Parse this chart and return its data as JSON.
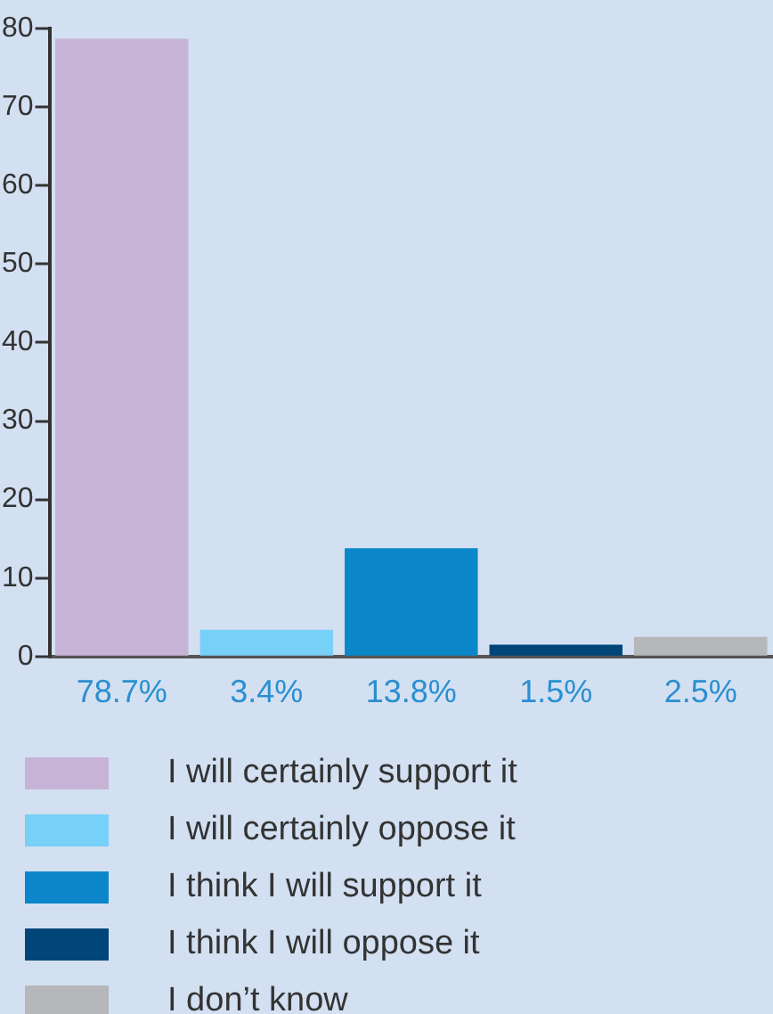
{
  "chart_data": {
    "type": "bar",
    "categories": [
      "78.7%",
      "3.4%",
      "13.8%",
      "1.5%",
      "2.5%"
    ],
    "series": [
      {
        "name": "I will certainly support it",
        "color": "#c7b3d6",
        "values": [
          78.7,
          null,
          null,
          null,
          null
        ]
      },
      {
        "name": "I will certainly oppose it",
        "color": "#77d0f7",
        "values": [
          null,
          3.4,
          null,
          null,
          null
        ]
      },
      {
        "name": "I think I will support it",
        "color": "#0b87c9",
        "values": [
          null,
          null,
          13.8,
          null,
          null
        ]
      },
      {
        "name": "I think I will oppose it",
        "color": "#004679",
        "values": [
          null,
          null,
          null,
          1.5,
          null
        ]
      },
      {
        "name": "I don’t know",
        "color": "#b5b7ba",
        "values": [
          null,
          null,
          null,
          null,
          2.5
        ]
      }
    ],
    "ylim": [
      0,
      80
    ],
    "yticks": [
      0,
      10,
      20,
      30,
      40,
      50,
      60,
      70,
      80
    ],
    "grid": false,
    "legend": "bottom"
  }
}
